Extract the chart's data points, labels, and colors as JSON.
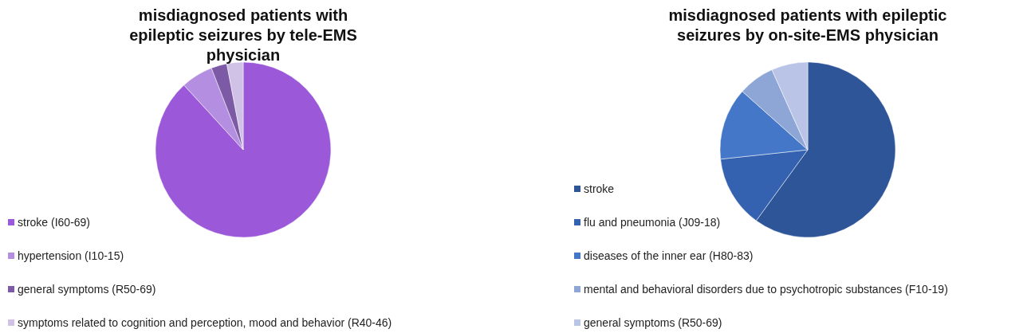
{
  "chart_data": [
    {
      "type": "pie",
      "title": "misdiagnosed patients with epileptic seizures by tele-EMS physician",
      "categories": [
        "stroke (I60-69)",
        "hypertension (I10-15)",
        "general symptoms (R50-69)",
        "symptoms related to cognition and perception, mood and behavior (R40-46)"
      ],
      "values": [
        88.2,
        5.9,
        2.9,
        3.0
      ],
      "colors": [
        "#9b59d9",
        "#b48ee0",
        "#7c5aa6",
        "#cfc2e6"
      ],
      "legend": "bottom left"
    },
    {
      "type": "pie",
      "title": "misdiagnosed patients with epileptic seizures by on-site-EMS physician",
      "categories": [
        "stroke",
        "flu and pneumonia (J09-18)",
        "diseases of the inner ear (H80-83)",
        "mental and behavioral disorders due to psychotropic substances (F10-19)",
        "general symptoms (R50-69)"
      ],
      "values": [
        60,
        13.3,
        13.3,
        6.7,
        6.7
      ],
      "colors": [
        "#2e5597",
        "#3462b0",
        "#4577c8",
        "#8ea6d6",
        "#b9c4e6"
      ],
      "legend": "bottom left"
    }
  ]
}
